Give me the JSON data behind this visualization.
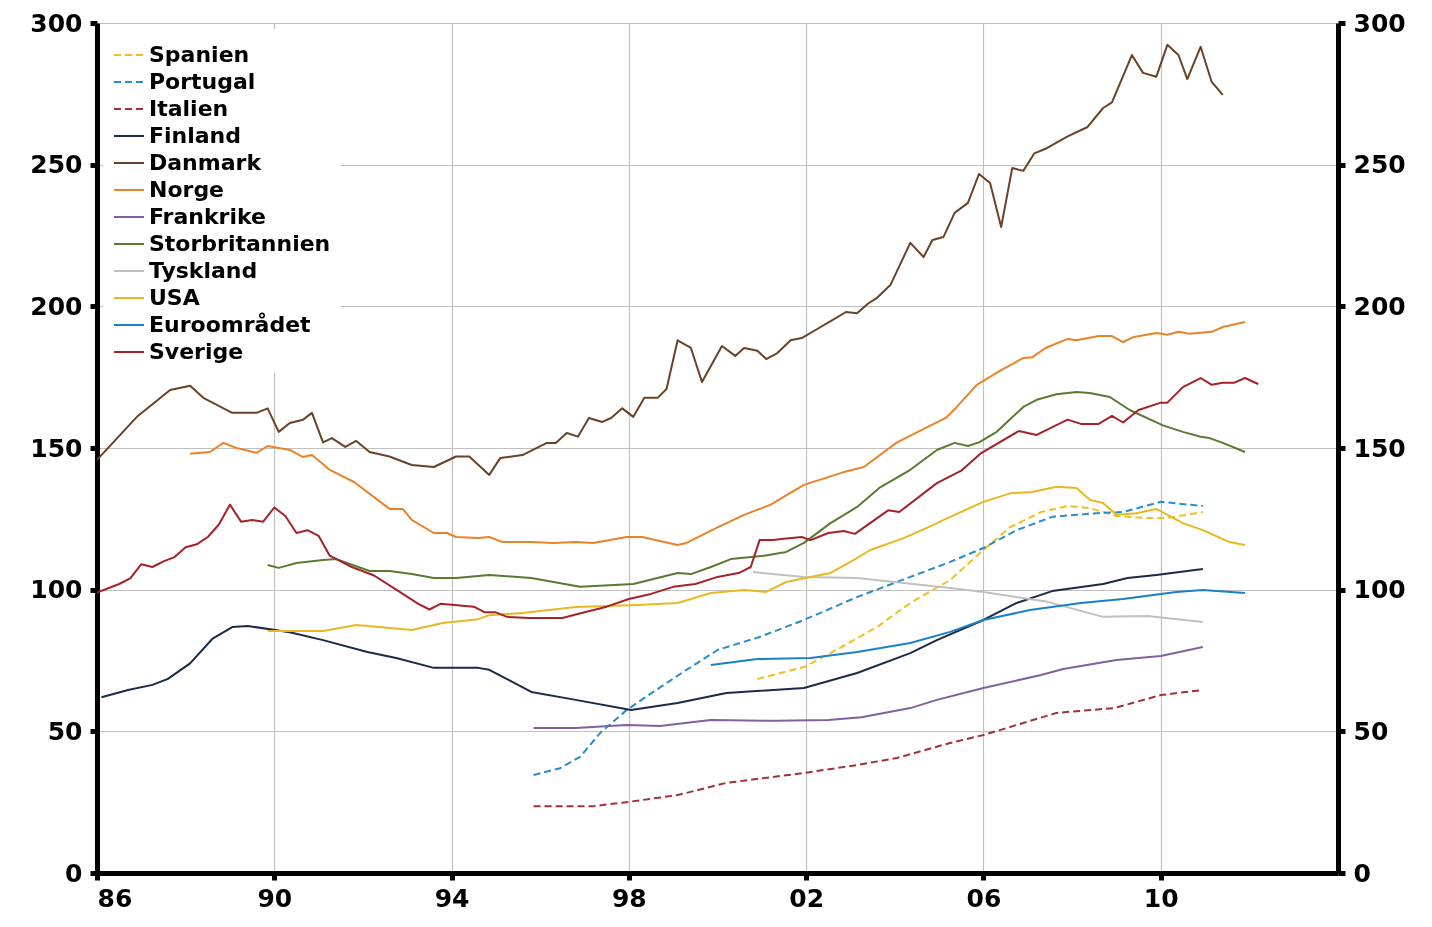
{
  "chart_data": {
    "type": "line",
    "xlim": [
      1986,
      2014
    ],
    "xticks": [
      {
        "value": 1986,
        "label": "86"
      },
      {
        "value": 1990,
        "label": "90"
      },
      {
        "value": 1994,
        "label": "94"
      },
      {
        "value": 1998,
        "label": "98"
      },
      {
        "value": 2002,
        "label": "02"
      },
      {
        "value": 2006,
        "label": "06"
      },
      {
        "value": 2010,
        "label": "10"
      }
    ],
    "ylim": [
      0,
      300
    ],
    "yticks": [
      0,
      50,
      100,
      150,
      200,
      250,
      300
    ],
    "y2lim": [
      0,
      300
    ],
    "y2ticks": [
      0,
      50,
      100,
      150,
      200,
      250,
      300
    ],
    "grid": true,
    "legend": "top left",
    "series": [
      {
        "name": "Spanien",
        "color": "#f0c020",
        "line_style": "dashed",
        "x": [
          2000.9,
          2001.95,
          2002.55,
          2003.6,
          2004.35,
          2005.25,
          2006,
          2006.6,
          2007.3,
          2007.9,
          2008.4,
          2009,
          2009.7,
          2010.15,
          2010.95
        ],
        "values": [
          68.5,
          72.7,
          77.6,
          86.8,
          95.3,
          103.4,
          114,
          122,
          127.4,
          129.5,
          128.8,
          126,
          125.3,
          125.3,
          127.4
        ]
      },
      {
        "name": "Portugal",
        "color": "#2a8cc8",
        "line_style": "dashed",
        "x": [
          1995.85,
          1996.45,
          1996.9,
          1997.35,
          1997.95,
          1998.55,
          1999.3,
          2000,
          2000.95,
          2001.95,
          2003.15,
          2004.35,
          2005.25,
          2006,
          2006.75,
          2007.55,
          2008.55,
          2009.15,
          2010,
          2010.95
        ],
        "values": [
          34.6,
          37,
          41,
          49.4,
          57.5,
          63.9,
          71.7,
          78.7,
          83.3,
          89.3,
          97.4,
          104.5,
          109.8,
          114.7,
          121,
          125.7,
          127,
          127.4,
          131,
          129.5
        ]
      },
      {
        "name": "Italien",
        "color": "#a0303a",
        "line_style": "dashed",
        "x": [
          1995.85,
          1997.2,
          1997.95,
          1999.1,
          2000.2,
          2001.05,
          2001.95,
          2003.15,
          2004.05,
          2005.25,
          2006,
          2007.65,
          2008.95,
          2010,
          2010.95
        ],
        "values": [
          23.6,
          23.6,
          25,
          27.5,
          31.8,
          33.5,
          35.3,
          38.1,
          40.6,
          45.9,
          48.7,
          56.5,
          58.2,
          62.8,
          64.6
        ]
      },
      {
        "name": "Finland",
        "color": "#1a2a4a",
        "line_style": "solid",
        "x": [
          1986.1,
          1986.7,
          1987.25,
          1987.6,
          1988.1,
          1988.6,
          1989.05,
          1989.4,
          1990.35,
          1991.1,
          1992.1,
          1992.75,
          1993.6,
          1994.6,
          1994.85,
          1995.8,
          1996.8,
          1998.05,
          1999.1,
          2000.2,
          2001.95,
          2003.15,
          2004.35,
          2004.95,
          2006,
          2006.75,
          2007.55,
          2008.7,
          2009.25,
          2009.9,
          2010.95
        ],
        "values": [
          62,
          64.6,
          66.4,
          68.5,
          74,
          82.6,
          86.8,
          87.2,
          85,
          82.2,
          78,
          75.9,
          72.4,
          72.4,
          71.7,
          63.9,
          61.1,
          57.5,
          60,
          63.5,
          65.3,
          70.6,
          77.6,
          82.2,
          89.3,
          95.3,
          99.5,
          102,
          104.1,
          105.2,
          107.3
        ]
      },
      {
        "name": "Danmark",
        "color": "#6b4226",
        "line_style": "solid",
        "x": [
          1986,
          1986.9,
          1987.65,
          1988.1,
          1988.4,
          1989.05,
          1989.6,
          1989.85,
          1990.1,
          1990.35,
          1990.65,
          1990.85,
          1991.1,
          1991.3,
          1991.6,
          1991.85,
          1992.15,
          1992.6,
          1993.1,
          1993.6,
          1994.1,
          1994.4,
          1994.85,
          1995.1,
          1995.6,
          1996.15,
          1996.35,
          1996.6,
          1996.85,
          1997.1,
          1997.4,
          1997.6,
          1997.85,
          1998.1,
          1998.35,
          1998.65,
          1998.85,
          1999.1,
          1999.4,
          1999.65,
          2000.1,
          2000.4,
          2000.6,
          2000.9,
          2001.1,
          2001.35,
          2001.65,
          2001.9,
          2002.25,
          2002.6,
          2002.9,
          2003.15,
          2003.4,
          2003.6,
          2003.9,
          2004.35,
          2004.65,
          2004.85,
          2005.1,
          2005.35,
          2005.65,
          2005.9,
          2006.15,
          2006.4,
          2006.65,
          2006.9,
          2007.15,
          2007.4,
          2007.9,
          2008.35,
          2008.7,
          2008.9,
          2009.35,
          2009.6,
          2009.9,
          2010.15,
          2010.4,
          2010.6,
          2010.9,
          2011.15,
          2011.4
        ],
        "values": [
          145.8,
          161,
          170.5,
          172,
          167.7,
          162.4,
          162.4,
          164,
          155.7,
          158.8,
          160,
          162.4,
          152,
          153.5,
          150.4,
          152.5,
          148.6,
          147,
          144,
          143.3,
          147,
          147,
          140.5,
          146.5,
          147.5,
          151.8,
          151.8,
          155.3,
          154,
          160.6,
          159.2,
          160.6,
          164,
          161,
          167.7,
          167.7,
          170.8,
          188,
          185.3,
          173.3,
          186,
          182.5,
          185.3,
          184.3,
          181.4,
          183.5,
          188,
          188.8,
          192,
          195.2,
          198,
          197.6,
          201,
          203,
          207.5,
          222.4,
          217.4,
          223.4,
          224.5,
          233,
          236.5,
          246.7,
          243.5,
          228,
          248.8,
          247.8,
          254,
          255.6,
          260,
          263.3,
          270,
          272,
          288.7,
          282.4,
          281,
          292.3,
          288.7,
          280.2,
          291.6,
          279.2,
          274.6
        ]
      },
      {
        "name": "Norge",
        "color": "#e8832a",
        "line_style": "solid",
        "x": [
          1988.1,
          1988.55,
          1988.85,
          1989.15,
          1989.6,
          1989.85,
          1990.35,
          1990.65,
          1990.85,
          1991.25,
          1991.8,
          1992.6,
          1992.9,
          1993.1,
          1993.6,
          1993.9,
          1994.1,
          1994.6,
          1994.85,
          1995.15,
          1995.8,
          1996.3,
          1996.8,
          1997.2,
          1997.95,
          1998.3,
          1999.1,
          1999.3,
          2000,
          2000.6,
          2001.2,
          2001.95,
          2002.85,
          2003.3,
          2004.05,
          2005.15,
          2005.4,
          2005.85,
          2006.4,
          2006.9,
          2007.1,
          2007.4,
          2007.9,
          2008.1,
          2008.6,
          2008.9,
          2009.15,
          2009.4,
          2009.9,
          2010.15,
          2010.4,
          2010.65,
          2011.15,
          2011.4,
          2011.9
        ],
        "values": [
          148,
          148.6,
          151.8,
          150,
          148.3,
          150.7,
          149.3,
          146.8,
          147.5,
          142.3,
          138,
          128.5,
          128.5,
          124.6,
          120,
          120,
          118.6,
          118.2,
          118.6,
          116.8,
          116.8,
          116.5,
          116.8,
          116.5,
          118.6,
          118.6,
          115.8,
          116.5,
          122,
          126.4,
          130,
          137,
          141.5,
          143.3,
          152,
          160.6,
          164.5,
          172.3,
          177.5,
          181.8,
          182,
          185.3,
          188.5,
          188,
          189.5,
          189.5,
          187.4,
          189.2,
          190.6,
          190,
          191,
          190.3,
          191,
          192.7,
          194.5
        ]
      },
      {
        "name": "Frankrike",
        "color": "#8060a0",
        "line_style": "solid",
        "x": [
          1995.85,
          1996.8,
          1997.95,
          1998.7,
          1999.85,
          2001.35,
          2002.5,
          2003.25,
          2004.35,
          2004.95,
          2006,
          2007.3,
          2007.8,
          2009,
          2010,
          2010.95
        ],
        "values": [
          51.2,
          51.2,
          52.2,
          51.9,
          54,
          53.7,
          54,
          55,
          58.2,
          61.1,
          65.3,
          69.9,
          72,
          75.2,
          76.6,
          79.8
        ]
      },
      {
        "name": "Storbritannien",
        "color": "#5a7a30",
        "line_style": "solid",
        "x": [
          1989.85,
          1990.1,
          1990.5,
          1991.1,
          1991.4,
          1992.15,
          1992.6,
          1993.1,
          1993.6,
          1994.1,
          1994.85,
          1995.8,
          1996.05,
          1996.9,
          1998.1,
          1999.1,
          1999.4,
          1999.85,
          2000.3,
          2001.05,
          2001.55,
          2001.95,
          2002.55,
          2003.15,
          2003.65,
          2004.35,
          2004.95,
          2005.35,
          2005.65,
          2005.9,
          2006.3,
          2006.9,
          2007.2,
          2007.65,
          2008.1,
          2008.4,
          2008.85,
          2009.3,
          2010.05,
          2010.5,
          2010.9,
          2011.1,
          2011.4,
          2011.9
        ],
        "values": [
          108.7,
          107.7,
          109.4,
          110.5,
          110.8,
          106.6,
          106.6,
          105.5,
          104.1,
          104.1,
          105.2,
          104.1,
          103.4,
          101,
          102,
          105.9,
          105.5,
          108,
          110.8,
          112,
          113.3,
          116.5,
          123.5,
          129.2,
          135.9,
          142.3,
          149.3,
          151.8,
          150.7,
          152,
          155.7,
          164.5,
          167,
          169,
          169.8,
          169.4,
          168,
          163.4,
          158,
          155.7,
          154,
          153.5,
          151.8,
          148.6
        ]
      },
      {
        "name": "Tyskland",
        "color": "#c0c0c0",
        "line_style": "solid",
        "x": [
          2000.8,
          2001.95,
          2003.15,
          2005.25,
          2006,
          2007.45,
          2008.7,
          2009.7,
          2010.95
        ],
        "values": [
          106.2,
          104.5,
          104.1,
          100.6,
          99.2,
          95.7,
          90.4,
          90.7,
          88.6
        ]
      },
      {
        "name": "USA",
        "color": "#e8b820",
        "line_style": "solid",
        "x": [
          1989.85,
          1990.35,
          1991.1,
          1991.85,
          1992.6,
          1993.1,
          1993.8,
          1994.6,
          1994.85,
          1995.6,
          1996.8,
          1998.2,
          1999.1,
          1999.85,
          2000.6,
          2001.1,
          2001.55,
          2002.1,
          2002.55,
          2003,
          2003.45,
          2004.2,
          2004.75,
          2005.25,
          2006,
          2006.6,
          2007.1,
          2007.65,
          2008.1,
          2008.4,
          2008.7,
          2009,
          2009.45,
          2009.9,
          2010.5,
          2010.95,
          2011.55,
          2011.9
        ],
        "values": [
          85.4,
          85.4,
          85.4,
          87.5,
          86.5,
          85.8,
          88.2,
          89.6,
          91,
          91.8,
          93.9,
          94.6,
          95.3,
          98.8,
          99.9,
          99.2,
          102.7,
          104.5,
          105.9,
          109.8,
          114,
          118.2,
          122,
          125.7,
          131,
          134,
          134.5,
          136.3,
          135.9,
          131.7,
          130.6,
          126.4,
          127,
          128.5,
          123.5,
          121,
          116.8,
          115.8
        ]
      },
      {
        "name": "Euroområdet",
        "color": "#1a80c8",
        "line_style": "solid",
        "x": [
          1999.85,
          2000.9,
          2002.1,
          2003.15,
          2004.35,
          2005.25,
          2006,
          2007.05,
          2008.2,
          2009.15,
          2010.35,
          2010.95,
          2011.9
        ],
        "values": [
          73.4,
          75.5,
          75.9,
          78,
          81.2,
          85.1,
          89.3,
          92.8,
          95.3,
          96.7,
          99.2,
          99.9,
          98.8
        ]
      },
      {
        "name": "Sverige",
        "color": "#a52228",
        "line_style": "solid",
        "x": [
          1986,
          1986.5,
          1986.75,
          1987,
          1987.25,
          1987.5,
          1987.75,
          1988,
          1988.25,
          1988.5,
          1988.75,
          1989,
          1989.25,
          1989.5,
          1989.75,
          1990,
          1990.25,
          1990.5,
          1990.75,
          1991,
          1991.25,
          1991.75,
          1992.25,
          1992.75,
          1993.25,
          1993.5,
          1993.75,
          1994.5,
          1994.75,
          1995,
          1995.25,
          1995.75,
          1996.5,
          1997,
          1997.5,
          1998,
          1998.5,
          1999,
          1999.5,
          2000,
          2000.5,
          2000.75,
          2000.95,
          2001.25,
          2001.5,
          2001.9,
          2002.1,
          2002.5,
          2002.85,
          2003.1,
          2003.85,
          2004.1,
          2004.95,
          2005.5,
          2005.93,
          2006.8,
          2007.2,
          2007.9,
          2008.2,
          2008.6,
          2008.9,
          2009.15,
          2009.5,
          2010,
          2010.15,
          2010.5,
          2010.9,
          2011.15,
          2011.4,
          2011.65,
          2011.9,
          2012.2
        ],
        "values": [
          99,
          102,
          104,
          109,
          108,
          110,
          111.5,
          115,
          116,
          118.6,
          123,
          130,
          124,
          124.6,
          124,
          129,
          126,
          120,
          121,
          119,
          112,
          108,
          105,
          100,
          95,
          93,
          95,
          94,
          92,
          92,
          90.4,
          90,
          90,
          92,
          94,
          96.7,
          98.5,
          101,
          102,
          104.5,
          106,
          108,
          117.5,
          117.5,
          118,
          118.6,
          117.5,
          120,
          120.7,
          119.7,
          128,
          127.4,
          137.6,
          142,
          148,
          156,
          154.6,
          160,
          158.5,
          158.5,
          161.3,
          159,
          163.4,
          166,
          166,
          171.5,
          174.7,
          172.3,
          173,
          173,
          174.7,
          172.6
        ]
      }
    ]
  }
}
